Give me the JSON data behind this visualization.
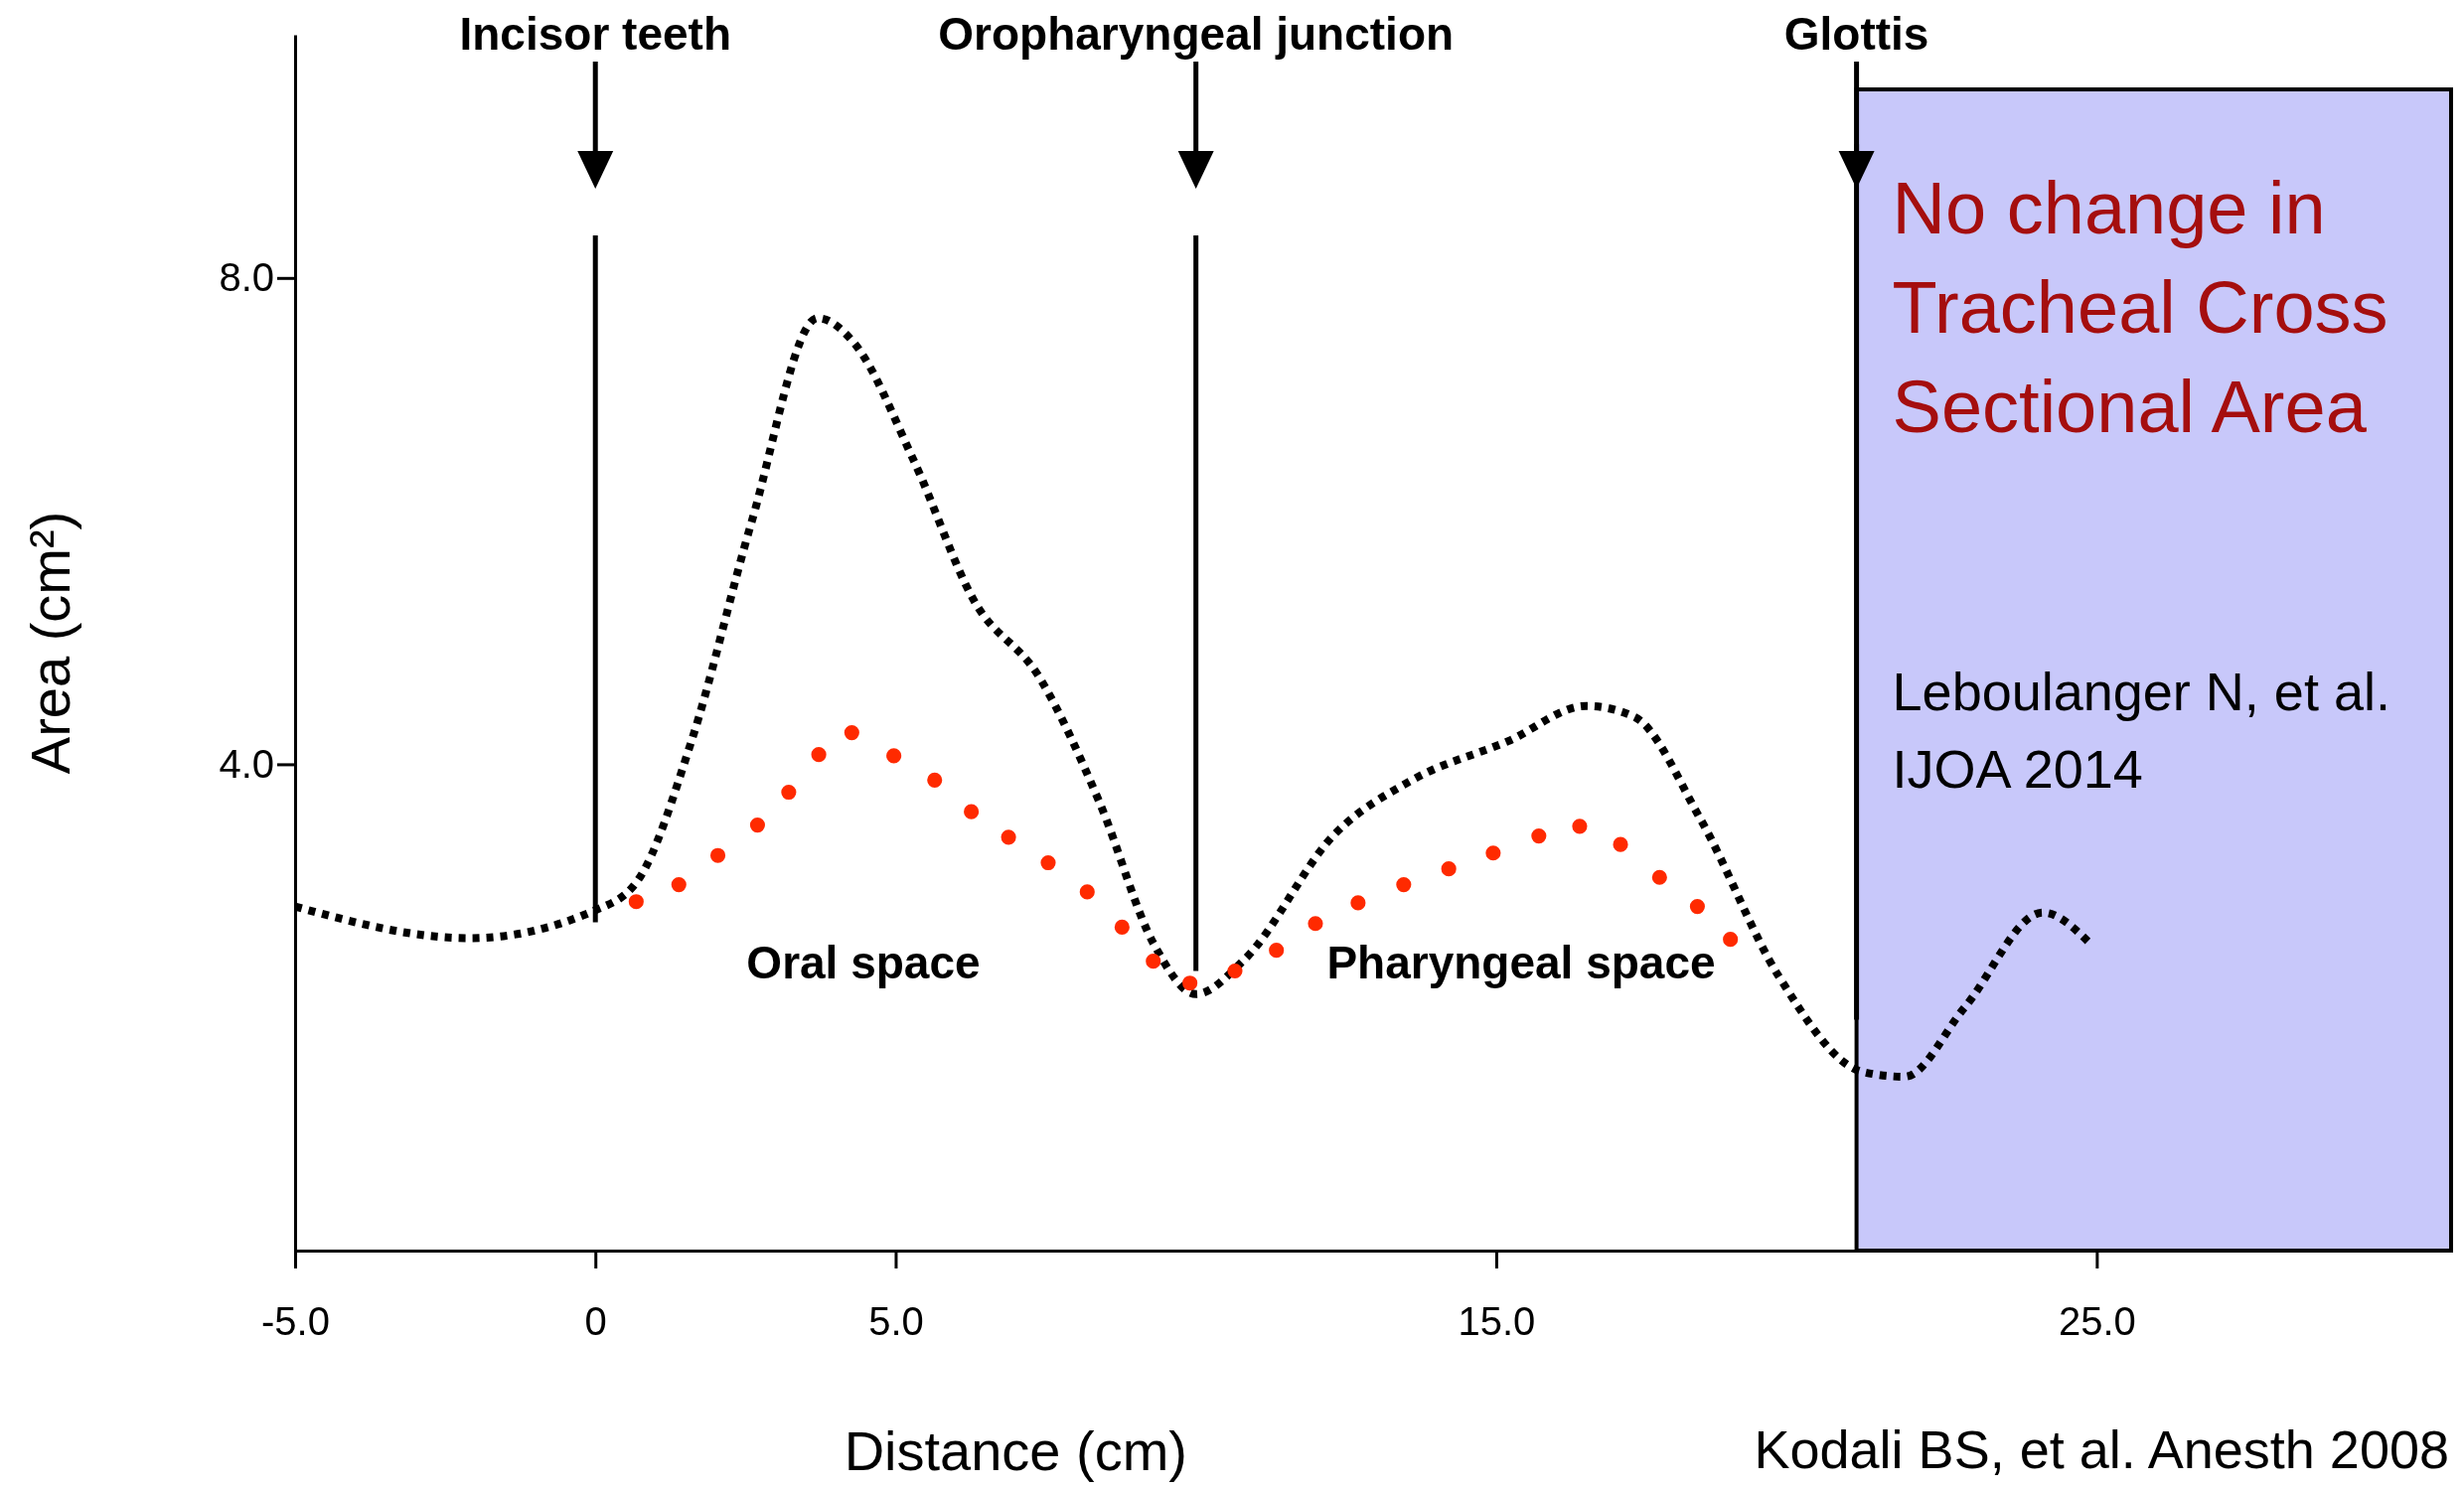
{
  "chart_data": {
    "type": "line",
    "xlabel": "Distance  (cm)",
    "ylabel": "Area  (cm²)",
    "xlim": [
      -5,
      30.9
    ],
    "ylim": [
      0,
      10
    ],
    "xticks": [
      {
        "value": -5,
        "label": "-5.0"
      },
      0,
      {
        "value": 5,
        "label": "5.0"
      },
      {
        "value": 15,
        "label": "15.0"
      },
      {
        "value": 25,
        "label": "25.0"
      }
    ],
    "yticks": [
      {
        "value": 4,
        "label": "4.0"
      },
      {
        "value": 8,
        "label": "8.0"
      }
    ],
    "grid": false,
    "series": [
      {
        "color": "#000000",
        "line_style": "dotted",
        "marker": "none",
        "x": [
          -5,
          -2.1,
          0,
          0.7,
          1.6,
          2.6,
          3.7,
          4.3,
          5.3,
          6.3,
          7.4,
          8.4,
          9.3,
          10,
          10.8,
          12.3,
          13.6,
          15.2,
          16.5,
          17.3,
          18.4,
          19.7,
          21.1,
          21.8,
          22.8,
          24.1,
          24.9
        ],
        "values": [
          2.83,
          2.57,
          2.8,
          3.04,
          4.19,
          5.99,
          7.67,
          7.47,
          6.5,
          5.35,
          4.71,
          3.68,
          2.52,
          2.11,
          2.39,
          3.42,
          3.87,
          4.19,
          4.48,
          4.39,
          3.55,
          2.26,
          1.47,
          1.43,
          2.0,
          2.78,
          2.52
        ]
      },
      {
        "type": "scatter",
        "color": "#ff2a00",
        "marker": "circle",
        "x": [
          0.68,
          1.39,
          2.04,
          2.7,
          3.22,
          3.72,
          4.27,
          4.97,
          5.65,
          6.26,
          6.88,
          7.54,
          8.19,
          8.77,
          9.29,
          9.9,
          10.65,
          11.34,
          11.99,
          12.7,
          13.46,
          14.21,
          14.95,
          15.71,
          16.39,
          17.07,
          17.72,
          18.35,
          18.9
        ],
        "values": [
          2.87,
          3.01,
          3.25,
          3.5,
          3.77,
          4.08,
          4.26,
          4.07,
          3.87,
          3.61,
          3.4,
          3.19,
          2.95,
          2.66,
          2.38,
          2.2,
          2.3,
          2.47,
          2.69,
          2.86,
          3.01,
          3.14,
          3.27,
          3.41,
          3.49,
          3.34,
          3.07,
          2.83,
          2.56
        ]
      }
    ],
    "ref_lines": [
      {
        "axis": "x",
        "value": 0,
        "label": "Incisor teeth",
        "color": "#000000"
      },
      {
        "axis": "x",
        "value": 10,
        "label": "Oropharyngeal junction",
        "color": "#000000"
      },
      {
        "axis": "x",
        "value": 21,
        "label": "Glottis",
        "color": "#000000"
      }
    ],
    "bands": [
      {
        "axis": "x",
        "from": 21,
        "to": 30.9,
        "label": "No change in Tracheal Cross Sectional Area",
        "color": "#c8c8fa"
      }
    ],
    "annotations": [
      "Oral space",
      "Pharyngeal space",
      "Leboulanger N, et al.  IJOA 2014",
      "Kodali BS, et al. Anesth 2008"
    ]
  }
}
